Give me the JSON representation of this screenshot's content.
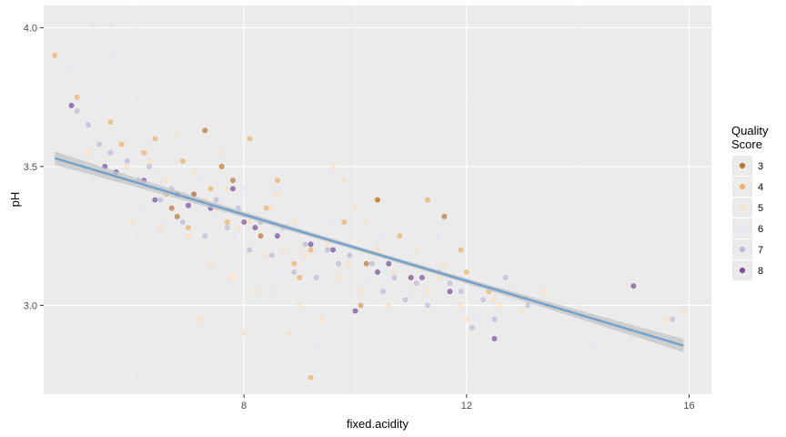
{
  "chart_data": {
    "type": "scatter",
    "xlabel": "fixed.acidity",
    "ylabel": "pH",
    "xlim": [
      4.4,
      16.4
    ],
    "ylim": [
      2.68,
      4.08
    ],
    "x_ticks": [
      8,
      12,
      16
    ],
    "y_ticks": [
      3.0,
      3.5,
      4.0
    ],
    "grid": true,
    "legend": {
      "title_lines": [
        "Quality",
        "Score"
      ],
      "placement": "right",
      "entries": [
        {
          "label": "3",
          "color": "#b35806"
        },
        {
          "label": "4",
          "color": "#f1a340"
        },
        {
          "label": "5",
          "color": "#fee0b6"
        },
        {
          "label": "6",
          "color": "#e7e6f0"
        },
        {
          "label": "7",
          "color": "#b2abd2"
        },
        {
          "label": "8",
          "color": "#542788"
        }
      ]
    },
    "trend_line": {
      "x": [
        4.6,
        15.9
      ],
      "y": [
        3.53,
        2.855
      ],
      "color": "#6fa1cc",
      "band_color": "#c4c4c4"
    },
    "series": [
      {
        "name": "3",
        "color": "#b35806",
        "x": [
          7.3,
          7.6,
          10.4,
          11.6,
          6.7,
          7.1,
          8.3,
          6.8,
          7.8,
          10.2
        ],
        "y": [
          3.63,
          3.5,
          3.38,
          3.32,
          3.35,
          3.4,
          3.25,
          3.32,
          3.45,
          3.15
        ]
      },
      {
        "name": "4",
        "color": "#f1a340",
        "x": [
          4.6,
          5.0,
          5.6,
          5.8,
          6.4,
          6.9,
          7.4,
          8.1,
          8.6,
          9.2,
          9.8,
          10.4,
          11.3,
          12.0,
          6.2,
          7.0,
          8.4,
          9.0,
          10.8,
          11.9,
          9.2,
          6.6,
          7.7,
          8.9,
          10.1,
          12.4
        ],
        "y": [
          3.9,
          3.75,
          3.66,
          3.58,
          3.6,
          3.52,
          3.42,
          3.6,
          3.45,
          3.2,
          3.3,
          3.38,
          3.38,
          3.12,
          3.55,
          3.28,
          3.35,
          3.1,
          3.25,
          3.2,
          2.74,
          3.4,
          3.3,
          3.15,
          3.0,
          3.05
        ]
      },
      {
        "name": "5",
        "color": "#fee0b6",
        "x": [
          5.2,
          5.9,
          6.3,
          6.6,
          6.9,
          7.1,
          7.3,
          7.5,
          7.7,
          7.9,
          8.1,
          8.3,
          8.5,
          8.7,
          8.9,
          9.1,
          9.3,
          9.5,
          9.7,
          9.9,
          10.1,
          10.4,
          10.7,
          11.0,
          11.3,
          11.6,
          11.9,
          12.2,
          12.6,
          13.0,
          6.0,
          6.5,
          7.0,
          7.4,
          7.8,
          8.2,
          8.6,
          9.0,
          9.4,
          9.8,
          10.2,
          10.6,
          11.1,
          11.5,
          12.0,
          12.5,
          13.4,
          15.6,
          15.9,
          7.2,
          8.0,
          8.8,
          9.6,
          10.0,
          6.8,
          7.6,
          8.4
        ],
        "y": [
          3.55,
          3.5,
          3.52,
          3.45,
          3.4,
          3.48,
          3.38,
          3.35,
          3.42,
          3.28,
          3.3,
          3.25,
          3.35,
          3.2,
          3.3,
          3.18,
          3.25,
          3.22,
          3.1,
          3.15,
          3.05,
          3.2,
          3.12,
          3.1,
          3.05,
          3.15,
          3.0,
          3.08,
          3.0,
          2.98,
          3.3,
          3.28,
          3.25,
          3.15,
          3.1,
          3.05,
          3.4,
          3.0,
          2.95,
          3.45,
          3.3,
          3.0,
          3.2,
          3.1,
          2.95,
          3.02,
          3.05,
          2.95,
          2.98,
          2.95,
          2.9,
          2.9,
          3.5,
          3.35,
          3.62,
          3.55,
          3.18
        ]
      },
      {
        "name": "6",
        "color": "#e7e6f0",
        "x": [
          5.3,
          5.6,
          6.0,
          6.4,
          6.8,
          7.2,
          7.6,
          8.0,
          8.4,
          8.8,
          9.2,
          9.6,
          10.0,
          10.4,
          10.8,
          11.2,
          11.6,
          12.0,
          12.4,
          12.8,
          13.2,
          13.6,
          14.0,
          14.3,
          5.7,
          6.2,
          6.6,
          7.0,
          7.4,
          7.8,
          8.2,
          8.6,
          9.0,
          9.4,
          9.8,
          10.2,
          10.6,
          11.0,
          11.4,
          11.8,
          12.2,
          12.6,
          13.0,
          5.4,
          4.9,
          8.0,
          9.3,
          6.5,
          7.5,
          8.5,
          9.5,
          10.5,
          11.5
        ],
        "y": [
          4.01,
          4.01,
          3.55,
          3.48,
          3.52,
          3.45,
          3.38,
          3.42,
          3.35,
          3.3,
          3.25,
          3.3,
          3.2,
          3.22,
          3.18,
          3.15,
          3.1,
          3.08,
          3.05,
          3.02,
          3.0,
          2.98,
          3.0,
          2.86,
          3.9,
          3.35,
          3.3,
          3.28,
          3.2,
          3.25,
          3.15,
          3.12,
          3.1,
          3.05,
          3.08,
          3.1,
          3.0,
          3.05,
          2.98,
          3.0,
          2.95,
          3.05,
          2.95,
          3.75,
          3.85,
          2.9,
          2.85,
          3.45,
          3.32,
          3.05,
          3.15,
          3.25,
          3.25
        ]
      },
      {
        "name": "7",
        "color": "#b2abd2",
        "x": [
          5.0,
          5.4,
          5.9,
          6.3,
          6.7,
          7.1,
          7.5,
          7.9,
          8.3,
          8.7,
          9.1,
          9.5,
          9.9,
          10.3,
          10.7,
          11.1,
          11.5,
          11.9,
          12.3,
          12.7,
          13.1,
          5.2,
          5.6,
          6.1,
          6.5,
          6.9,
          7.3,
          7.7,
          8.1,
          8.5,
          8.9,
          9.3,
          9.7,
          10.1,
          10.5,
          10.9,
          11.3,
          11.7,
          12.1,
          12.5,
          15.7
        ],
        "y": [
          3.7,
          3.58,
          3.52,
          3.5,
          3.42,
          3.4,
          3.38,
          3.35,
          3.3,
          3.28,
          3.22,
          3.2,
          3.18,
          3.15,
          3.1,
          3.08,
          3.12,
          3.05,
          3.02,
          3.1,
          3.0,
          3.65,
          3.55,
          3.45,
          3.38,
          3.3,
          3.25,
          3.28,
          3.2,
          3.18,
          3.12,
          3.1,
          3.15,
          3.0,
          3.05,
          3.02,
          3.0,
          3.08,
          2.92,
          2.95,
          2.95
        ]
      },
      {
        "name": "8",
        "color": "#542788",
        "x": [
          4.9,
          5.5,
          6.2,
          6.8,
          7.4,
          8.0,
          8.6,
          9.2,
          10.0,
          10.6,
          11.2,
          11.7,
          12.5,
          15.0,
          7.8,
          9.6,
          8.2,
          7.0,
          10.4,
          5.7,
          6.4,
          11.0
        ],
        "y": [
          3.72,
          3.5,
          3.45,
          3.4,
          3.35,
          3.3,
          3.25,
          3.22,
          2.98,
          3.15,
          3.1,
          3.05,
          2.88,
          3.07,
          3.42,
          3.2,
          3.28,
          3.36,
          3.12,
          3.48,
          3.38,
          3.1
        ]
      }
    ]
  }
}
